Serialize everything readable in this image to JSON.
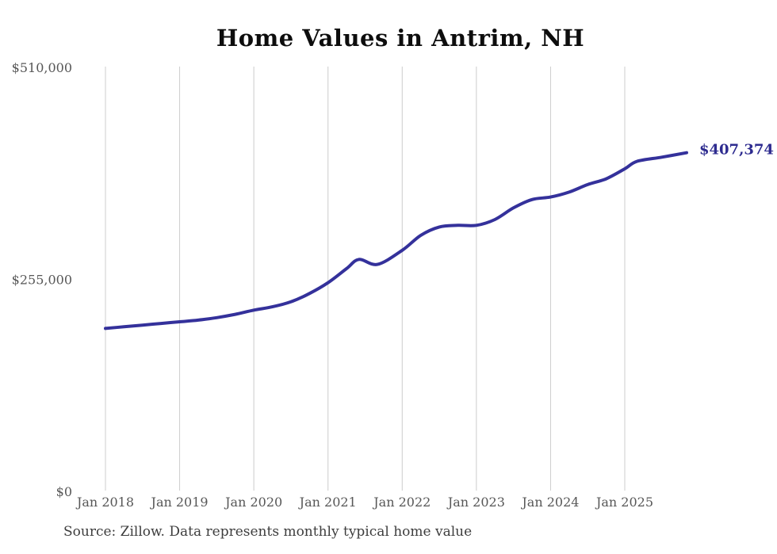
{
  "chart": {
    "title": "Home Values in Antrim, NH",
    "end_label": "$407,374",
    "source_note": "Source: Zillow. Data represents monthly typical home value"
  },
  "chart_data": {
    "type": "line",
    "title": "Home Values in Antrim, NH",
    "xlabel": "",
    "ylabel": "",
    "ylim": [
      0,
      510000
    ],
    "grid": "vertical-only",
    "legend": "none",
    "line_color": "#34319b",
    "grid_color": "#cccccc",
    "tick_label_color": "#575757",
    "annotation": {
      "text": "$407,374",
      "at": "last-point"
    },
    "yticks": [
      {
        "value": 0,
        "label": "$0"
      },
      {
        "value": 255000,
        "label": "$255,000"
      },
      {
        "value": 510000,
        "label": "$510,000"
      }
    ],
    "xticks": [
      {
        "month": "2018-01",
        "label": "Jan 2018"
      },
      {
        "month": "2019-01",
        "label": "Jan 2019"
      },
      {
        "month": "2020-01",
        "label": "Jan 2020"
      },
      {
        "month": "2021-01",
        "label": "Jan 2021"
      },
      {
        "month": "2022-01",
        "label": "Jan 2022"
      },
      {
        "month": "2023-01",
        "label": "Jan 2023"
      },
      {
        "month": "2024-01",
        "label": "Jan 2024"
      },
      {
        "month": "2025-01",
        "label": "Jan 2025"
      }
    ],
    "series": [
      {
        "name": "Monthly typical home value",
        "points": [
          [
            "2018-01",
            196000
          ],
          [
            "2018-04",
            198000
          ],
          [
            "2018-07",
            200000
          ],
          [
            "2018-10",
            202000
          ],
          [
            "2019-01",
            204000
          ],
          [
            "2019-04",
            206000
          ],
          [
            "2019-07",
            209000
          ],
          [
            "2019-10",
            213000
          ],
          [
            "2020-01",
            218000
          ],
          [
            "2020-04",
            222000
          ],
          [
            "2020-07",
            228000
          ],
          [
            "2020-10",
            238000
          ],
          [
            "2021-01",
            251000
          ],
          [
            "2021-04",
            268000
          ],
          [
            "2021-06",
            279000
          ],
          [
            "2021-09",
            273000
          ],
          [
            "2022-01",
            290000
          ],
          [
            "2022-04",
            308000
          ],
          [
            "2022-07",
            318000
          ],
          [
            "2022-10",
            320000
          ],
          [
            "2023-01",
            320000
          ],
          [
            "2023-04",
            327000
          ],
          [
            "2023-07",
            341000
          ],
          [
            "2023-10",
            351000
          ],
          [
            "2024-01",
            354000
          ],
          [
            "2024-04",
            360000
          ],
          [
            "2024-07",
            369000
          ],
          [
            "2024-10",
            376000
          ],
          [
            "2025-01",
            388000
          ],
          [
            "2025-03",
            397000
          ],
          [
            "2025-07",
            402000
          ],
          [
            "2025-11",
            407374
          ]
        ]
      }
    ]
  }
}
